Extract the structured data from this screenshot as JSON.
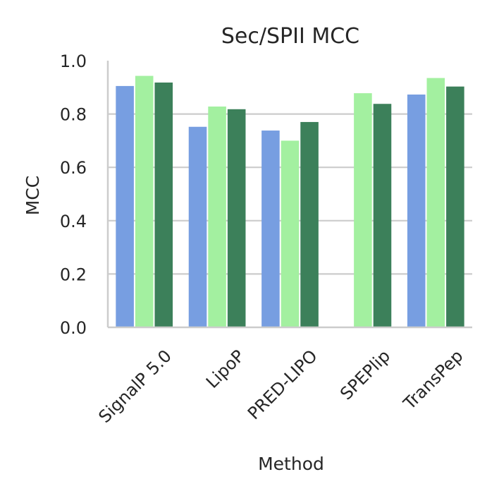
{
  "chart_data": {
    "type": "bar",
    "title": "Sec/SPII MCC",
    "xlabel": "Method",
    "ylabel": "MCC",
    "ylim": [
      0,
      1.0
    ],
    "yticks": [
      "0.0",
      "0.2",
      "0.4",
      "0.6",
      "0.8",
      "1.0"
    ],
    "grid": "horizontal",
    "categories": [
      "SignalP 5.0",
      "LipoP",
      "PRED-LIPO",
      "SPEPlip",
      "TransPep"
    ],
    "series": [
      {
        "color": "#779ee1",
        "values": [
          0.905,
          0.752,
          0.738,
          null,
          0.873
        ]
      },
      {
        "color": "#a3f0a0",
        "values": [
          0.943,
          0.828,
          0.7,
          0.878,
          0.935
        ]
      },
      {
        "color": "#3c805a",
        "values": [
          0.918,
          0.818,
          0.77,
          0.838,
          0.903
        ]
      }
    ]
  }
}
